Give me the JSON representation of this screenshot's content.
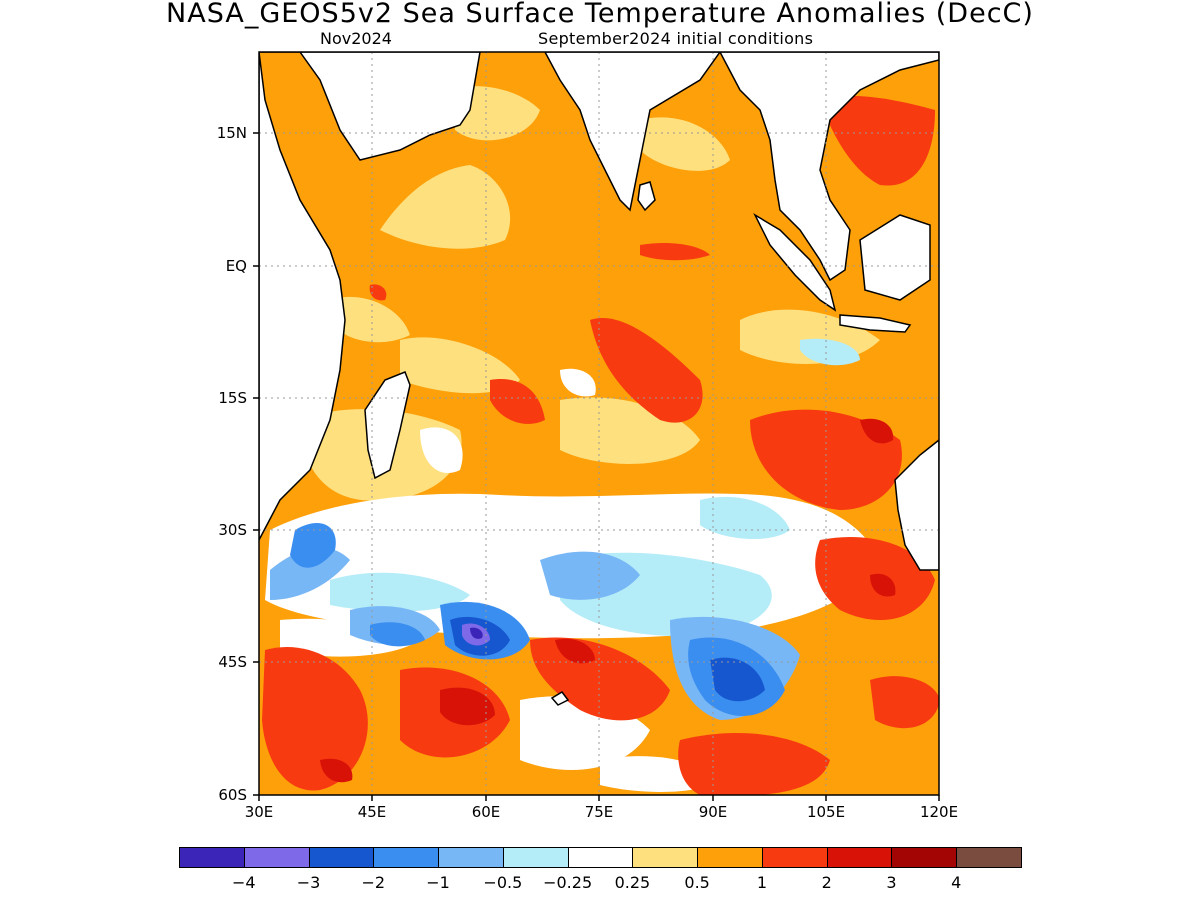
{
  "title": "NASA_GEOS5v2 Sea Surface Temperature Anomalies (DecC)",
  "subtitle_left": "Nov2024",
  "subtitle_right": "September2024 initial conditions",
  "map": {
    "lon_range": [
      30,
      120
    ],
    "lat_range": [
      -60,
      24
    ],
    "lat_ticks": [
      {
        "value": 15,
        "label": "15N"
      },
      {
        "value": 0,
        "label": "EQ"
      },
      {
        "value": -15,
        "label": "15S"
      },
      {
        "value": -30,
        "label": "30S"
      },
      {
        "value": -45,
        "label": "45S"
      },
      {
        "value": -60,
        "label": "60S"
      }
    ],
    "lon_ticks": [
      {
        "value": 30,
        "label": "30E"
      },
      {
        "value": 45,
        "label": "45E"
      },
      {
        "value": 60,
        "label": "60E"
      },
      {
        "value": 75,
        "label": "75E"
      },
      {
        "value": 90,
        "label": "90E"
      },
      {
        "value": 105,
        "label": "105E"
      },
      {
        "value": 120,
        "label": "120E"
      }
    ]
  },
  "colorbar": {
    "colors": [
      "#3a25b8",
      "#7e6ae8",
      "#1657d0",
      "#3a8ef0",
      "#78b7f5",
      "#b4ecf8",
      "#ffffff",
      "#fee07f",
      "#fda00a",
      "#f73a10",
      "#d91208",
      "#a30404",
      "#7a4c40"
    ],
    "labels": [
      "-4",
      "-3",
      "-2",
      "-1",
      "-0.5",
      "-0.25",
      "0.25",
      "0.5",
      "1",
      "2",
      "3",
      "4"
    ]
  }
}
